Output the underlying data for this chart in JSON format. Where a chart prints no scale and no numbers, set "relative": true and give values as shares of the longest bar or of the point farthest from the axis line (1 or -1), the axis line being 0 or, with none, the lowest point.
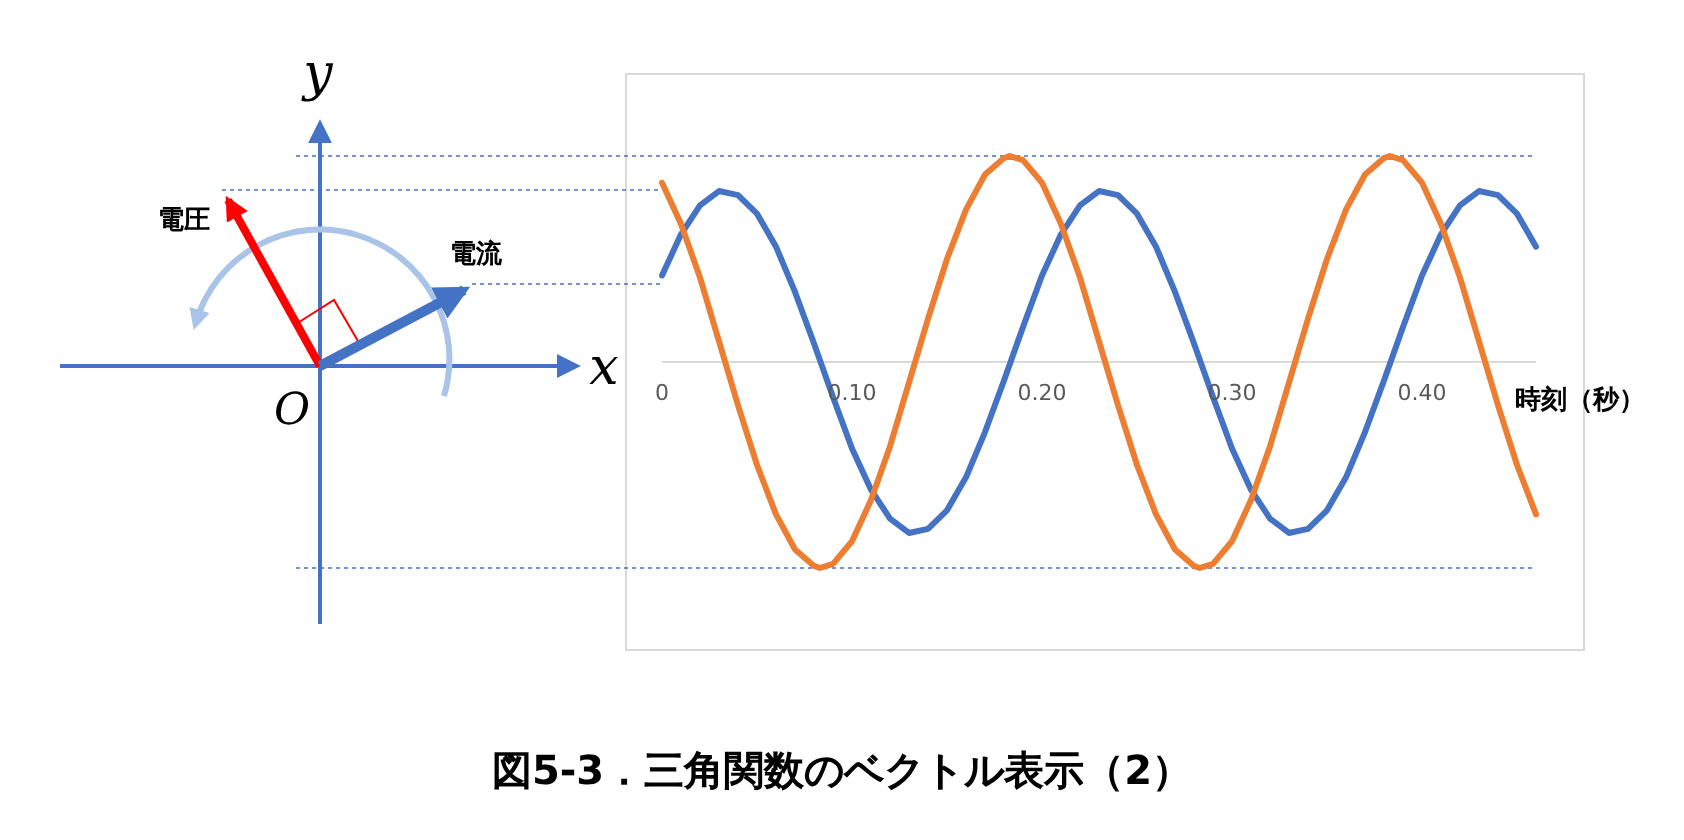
{
  "chart_data": {
    "type": "line",
    "title": "図5-3．三角関数のベクトル表示（2）",
    "xlabel": "時刻（秒）",
    "relative": true,
    "xlim": [
      0,
      0.46
    ],
    "xticks": [
      0,
      {
        "value": 0.1,
        "label": "0.10"
      },
      {
        "value": 0.2,
        "label": "0.20"
      },
      {
        "value": 0.3,
        "label": "0.30"
      },
      {
        "value": 0.4,
        "label": "0.40"
      }
    ],
    "annotations": [
      "電圧",
      "電流",
      "x",
      "y",
      "O"
    ],
    "ref_lines": [
      {
        "axis": "y",
        "value": 1,
        "color": "#4472c4",
        "line_style": "dotted"
      },
      {
        "axis": "y",
        "value": -1,
        "color": "#4472c4",
        "line_style": "dotted"
      }
    ],
    "series": [
      {
        "color": "#4472c4",
        "x": [
          0,
          0.01,
          0.02,
          0.03,
          0.04,
          0.05,
          0.06,
          0.07,
          0.08,
          0.09,
          0.1,
          0.11,
          0.12,
          0.13,
          0.14,
          0.15,
          0.16,
          0.17,
          0.18,
          0.19,
          0.2,
          0.21,
          0.22,
          0.23,
          0.24,
          0.25,
          0.26,
          0.27,
          0.28,
          0.29,
          0.3,
          0.31,
          0.32,
          0.33,
          0.34,
          0.35,
          0.36,
          0.37,
          0.38,
          0.39,
          0.4,
          0.41,
          0.42,
          0.43,
          0.44,
          0.45,
          0.46
        ],
        "values": [
          0.42,
          0.62,
          0.76,
          0.83,
          0.81,
          0.72,
          0.56,
          0.34,
          0.09,
          -0.17,
          -0.42,
          -0.62,
          -0.76,
          -0.83,
          -0.81,
          -0.72,
          -0.56,
          -0.34,
          -0.09,
          0.17,
          0.42,
          0.62,
          0.76,
          0.83,
          0.81,
          0.72,
          0.56,
          0.34,
          0.09,
          -0.17,
          -0.42,
          -0.62,
          -0.76,
          -0.83,
          -0.81,
          -0.72,
          -0.56,
          -0.34,
          -0.09,
          0.17,
          0.42,
          0.62,
          0.76,
          0.83,
          0.81,
          0.72,
          0.56
        ]
      },
      {
        "color": "#ed7d31",
        "x": [
          0,
          0.01,
          0.02,
          0.03,
          0.04,
          0.05,
          0.06,
          0.07,
          0.08,
          0.083,
          0.09,
          0.1,
          0.11,
          0.12,
          0.13,
          0.14,
          0.15,
          0.16,
          0.17,
          0.18,
          0.183,
          0.19,
          0.2,
          0.21,
          0.22,
          0.23,
          0.24,
          0.25,
          0.26,
          0.27,
          0.28,
          0.283,
          0.29,
          0.3,
          0.31,
          0.32,
          0.33,
          0.34,
          0.35,
          0.36,
          0.37,
          0.38,
          0.383,
          0.39,
          0.4,
          0.41,
          0.42,
          0.43,
          0.44,
          0.45,
          0.46
        ],
        "values": [
          0.87,
          0.67,
          0.41,
          0.1,
          -0.21,
          -0.5,
          -0.74,
          -0.91,
          -0.99,
          -1,
          -0.98,
          -0.87,
          -0.67,
          -0.41,
          -0.1,
          0.21,
          0.5,
          0.74,
          0.91,
          0.99,
          1,
          0.98,
          0.87,
          0.67,
          0.41,
          0.1,
          -0.21,
          -0.5,
          -0.74,
          -0.91,
          -0.99,
          -1,
          -0.98,
          -0.87,
          -0.67,
          -0.41,
          -0.1,
          0.21,
          0.5,
          0.74,
          0.91,
          0.99,
          1,
          0.98,
          0.87,
          0.67,
          0.41,
          0.1,
          -0.21,
          -0.5,
          -0.74
        ]
      }
    ]
  }
}
